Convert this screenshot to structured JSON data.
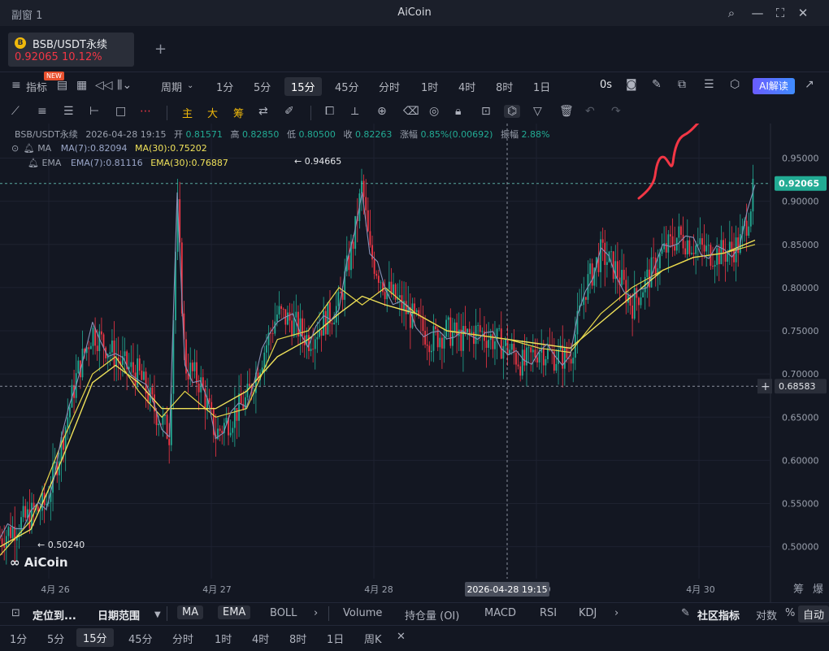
{
  "window": {
    "name": "副窗 1",
    "app_title": "AiCoin"
  },
  "tab": {
    "symbol": "BSB/USDT永续",
    "price": "0.92065",
    "change": "10.12%",
    "add": "+"
  },
  "toolbar": {
    "indicator_label": "指标",
    "new_badge": "NEW",
    "period_label": "周期",
    "timeframes": [
      "1分",
      "5分",
      "15分",
      "45分",
      "分时",
      "1时",
      "4时",
      "8时",
      "1日"
    ],
    "active_timeframe": "15分",
    "countdown": "0s",
    "ai_label": "AI解读"
  },
  "drawbar": {
    "main": "主",
    "big": "大",
    "chip": "筹"
  },
  "legend": {
    "line1": {
      "symbol": "BSB/USDT永续",
      "datetime": "2026-04-28 19:15",
      "open_label": "开",
      "open": "0.81571",
      "high_label": "高",
      "high": "0.82850",
      "low_label": "低",
      "low": "0.80500",
      "close_label": "收",
      "close": "0.82263",
      "chg_label": "涨幅",
      "chg": "0.85%(0.00692)",
      "amp_label": "振幅",
      "amp": "2.88%"
    },
    "ma": {
      "name": "MA",
      "ma7": "MA(7):0.82094",
      "ma30": "MA(30):0.75202"
    },
    "ema": {
      "name": "EMA",
      "ema7": "EMA(7):0.81116",
      "ema30": "EMA(30):0.76887"
    }
  },
  "chart_data": {
    "type": "candlestick",
    "y_ticks": [
      0.95,
      0.9,
      0.85,
      0.8,
      0.75,
      0.7,
      0.65,
      0.6,
      0.55,
      0.5
    ],
    "y_tick_labels": [
      "0.95000",
      "0.90000",
      "0.85000",
      "0.80000",
      "0.75000",
      "0.70000",
      "0.65000",
      "0.60000",
      "0.55000",
      "0.50000"
    ],
    "ylim": [
      0.463,
      0.99
    ],
    "x_ticks": [
      "4月 26",
      "4月 27",
      "4月 28",
      "4月 29",
      "4月 30"
    ],
    "current_price": "0.92065",
    "current_price_value": 0.92065,
    "crosshair_price": "0.68583",
    "crosshair_price_value": 0.68583,
    "crosshair_time": "2026-04-28 19:15",
    "max_label": "0.94665",
    "max_value": 0.94665,
    "min_label": "0.50240",
    "min_value": 0.5024,
    "price_path": [
      [
        0,
        0.51
      ],
      [
        3,
        0.53
      ],
      [
        6,
        0.55
      ],
      [
        8,
        0.62
      ],
      [
        10,
        0.7
      ],
      [
        12,
        0.75
      ],
      [
        14,
        0.73
      ],
      [
        16,
        0.71
      ],
      [
        18,
        0.7
      ],
      [
        20,
        0.66
      ],
      [
        22,
        0.63
      ],
      [
        23,
        0.9
      ],
      [
        24,
        0.71
      ],
      [
        26,
        0.69
      ],
      [
        28,
        0.63
      ],
      [
        30,
        0.65
      ],
      [
        32,
        0.67
      ],
      [
        34,
        0.72
      ],
      [
        36,
        0.77
      ],
      [
        38,
        0.76
      ],
      [
        40,
        0.74
      ],
      [
        42,
        0.76
      ],
      [
        44,
        0.78
      ],
      [
        46,
        0.86
      ],
      [
        47,
        0.92
      ],
      [
        48,
        0.84
      ],
      [
        50,
        0.8
      ],
      [
        52,
        0.78
      ],
      [
        54,
        0.76
      ],
      [
        56,
        0.74
      ],
      [
        58,
        0.75
      ],
      [
        60,
        0.74
      ],
      [
        62,
        0.75
      ],
      [
        64,
        0.74
      ],
      [
        66,
        0.73
      ],
      [
        68,
        0.71
      ],
      [
        70,
        0.73
      ],
      [
        72,
        0.72
      ],
      [
        74,
        0.72
      ],
      [
        76,
        0.8
      ],
      [
        78,
        0.84
      ],
      [
        80,
        0.82
      ],
      [
        82,
        0.78
      ],
      [
        84,
        0.81
      ],
      [
        86,
        0.84
      ],
      [
        88,
        0.86
      ],
      [
        90,
        0.85
      ],
      [
        92,
        0.84
      ],
      [
        94,
        0.84
      ],
      [
        96,
        0.85
      ],
      [
        97,
        0.88
      ],
      [
        98,
        0.92
      ]
    ],
    "ma30_path": [
      [
        0,
        0.5
      ],
      [
        4,
        0.52
      ],
      [
        8,
        0.6
      ],
      [
        12,
        0.69
      ],
      [
        15,
        0.71
      ],
      [
        18,
        0.69
      ],
      [
        21,
        0.66
      ],
      [
        24,
        0.66
      ],
      [
        28,
        0.66
      ],
      [
        32,
        0.68
      ],
      [
        36,
        0.72
      ],
      [
        40,
        0.74
      ],
      [
        44,
        0.77
      ],
      [
        47,
        0.79
      ],
      [
        50,
        0.78
      ],
      [
        54,
        0.77
      ],
      [
        58,
        0.75
      ],
      [
        62,
        0.745
      ],
      [
        66,
        0.74
      ],
      [
        70,
        0.735
      ],
      [
        74,
        0.73
      ],
      [
        78,
        0.76
      ],
      [
        82,
        0.79
      ],
      [
        86,
        0.82
      ],
      [
        90,
        0.835
      ],
      [
        94,
        0.84
      ],
      [
        98,
        0.855
      ]
    ],
    "ema30_path": [
      [
        0,
        0.49
      ],
      [
        4,
        0.53
      ],
      [
        8,
        0.62
      ],
      [
        12,
        0.7
      ],
      [
        15,
        0.72
      ],
      [
        18,
        0.68
      ],
      [
        21,
        0.65
      ],
      [
        24,
        0.68
      ],
      [
        28,
        0.65
      ],
      [
        32,
        0.66
      ],
      [
        36,
        0.74
      ],
      [
        40,
        0.75
      ],
      [
        44,
        0.8
      ],
      [
        47,
        0.78
      ],
      [
        50,
        0.8
      ],
      [
        54,
        0.77
      ],
      [
        58,
        0.75
      ],
      [
        62,
        0.745
      ],
      [
        66,
        0.74
      ],
      [
        70,
        0.73
      ],
      [
        74,
        0.725
      ],
      [
        78,
        0.77
      ],
      [
        82,
        0.8
      ],
      [
        86,
        0.82
      ],
      [
        90,
        0.835
      ],
      [
        94,
        0.84
      ],
      [
        98,
        0.85
      ]
    ]
  },
  "bottom": {
    "locate": "定位到...",
    "date_range": "日期范围",
    "indicators": [
      "MA",
      "EMA",
      "BOLL"
    ],
    "sub_indicators": [
      "Volume",
      "持仓量 (OI)",
      "MACD",
      "RSI",
      "KDJ"
    ],
    "community": "社区指标",
    "log": "对数",
    "pct": "%",
    "auto": "自动",
    "chip": "筹",
    "explode": "爆"
  },
  "bottom_timeframes": [
    "1分",
    "5分",
    "15分",
    "45分",
    "分时",
    "1时",
    "4时",
    "8时",
    "1日",
    "周K"
  ],
  "bottom_active": "15分",
  "brand": "AiCoin"
}
